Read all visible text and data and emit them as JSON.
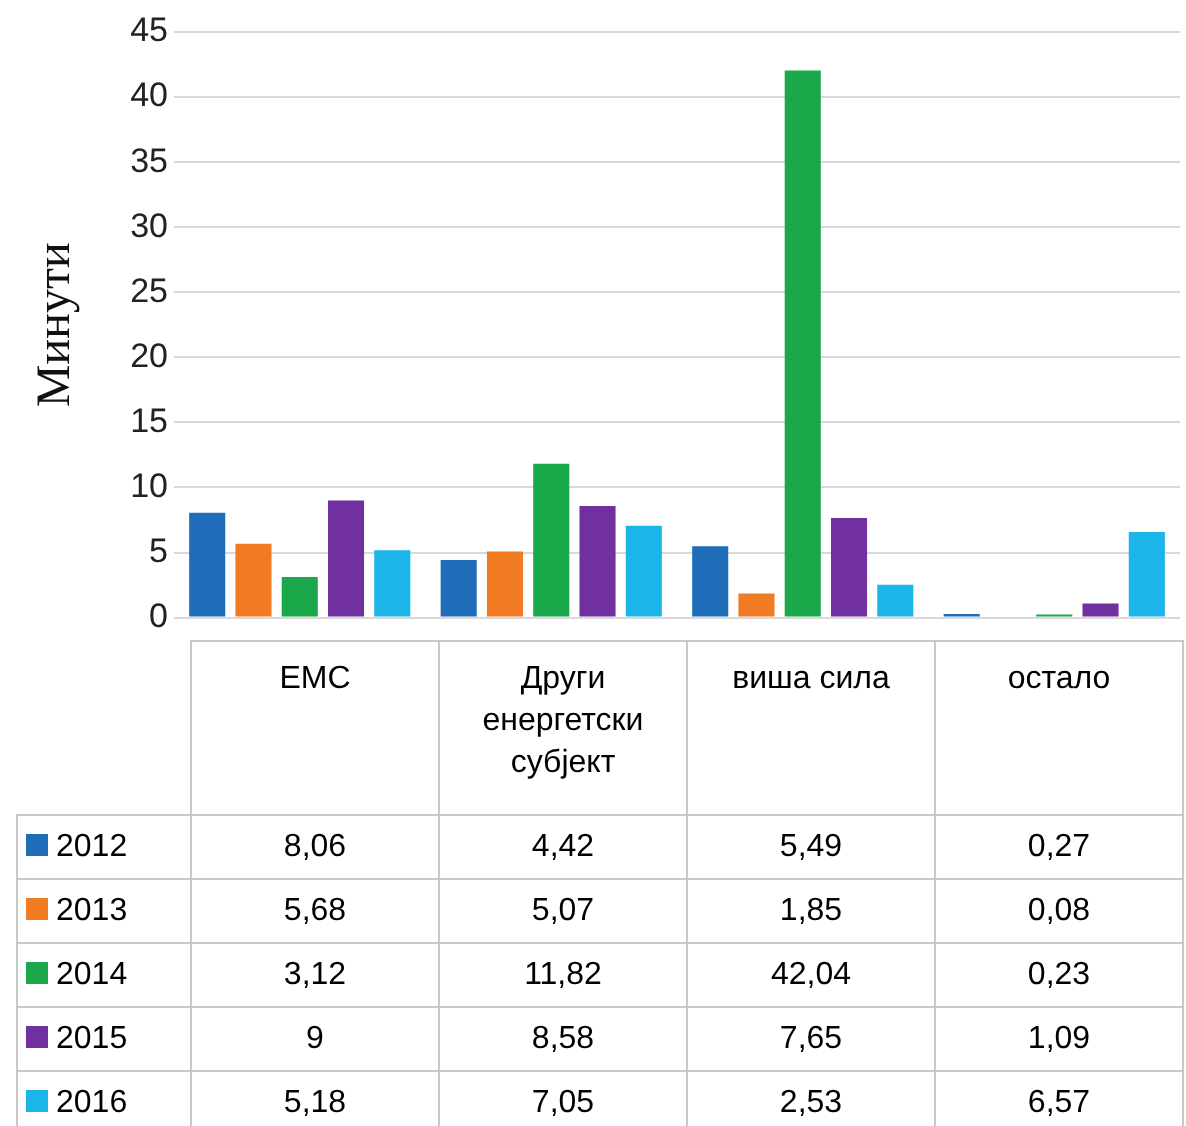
{
  "chart_data": {
    "type": "bar",
    "ylabel": "Минути",
    "categories": [
      "ЕМС",
      "Други енергетски субјект",
      "виша сила",
      "остало"
    ],
    "series": [
      {
        "name": "2012",
        "color": "#1f6cb8",
        "values": [
          8.06,
          4.42,
          5.49,
          0.27
        ],
        "value_labels": [
          "8,06",
          "4,42",
          "5,49",
          "0,27"
        ]
      },
      {
        "name": "2013",
        "color": "#f07b22",
        "values": [
          5.68,
          5.07,
          1.85,
          0.08
        ],
        "value_labels": [
          "5,68",
          "5,07",
          "1,85",
          "0,08"
        ]
      },
      {
        "name": "2014",
        "color": "#1aa84a",
        "values": [
          3.12,
          11.82,
          42.04,
          0.23
        ],
        "value_labels": [
          "3,12",
          "11,82",
          "42,04",
          "0,23"
        ]
      },
      {
        "name": "2015",
        "color": "#7030a0",
        "values": [
          9,
          8.58,
          7.65,
          1.09
        ],
        "value_labels": [
          "9",
          "8,58",
          "7,65",
          "1,09"
        ]
      },
      {
        "name": "2016",
        "color": "#1cb5ea",
        "values": [
          5.18,
          7.05,
          2.53,
          6.57
        ],
        "value_labels": [
          "5,18",
          "7,05",
          "2,53",
          "6,57"
        ]
      }
    ],
    "ylim": [
      0,
      45
    ],
    "yticks": [
      0,
      5,
      10,
      15,
      20,
      25,
      30,
      35,
      40,
      45
    ],
    "grid": "y",
    "legend": "bottom"
  }
}
